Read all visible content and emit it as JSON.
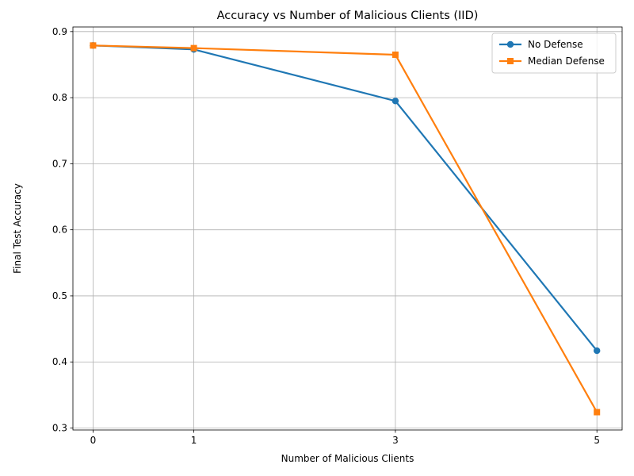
{
  "chart_data": {
    "type": "line",
    "title": "Accuracy vs Number of Malicious Clients (IID)",
    "xlabel": "Number of Malicious Clients",
    "ylabel": "Final Test Accuracy",
    "x": [
      0,
      1,
      3,
      5
    ],
    "x_ticks": [
      "0",
      "1",
      "3",
      "5"
    ],
    "xlim": [
      -0.2,
      5.25
    ],
    "ylim": [
      0.297,
      0.907
    ],
    "y_ticks": [
      "0.3",
      "0.4",
      "0.5",
      "0.6",
      "0.7",
      "0.8",
      "0.9"
    ],
    "y_tick_values": [
      0.3,
      0.4,
      0.5,
      0.6,
      0.7,
      0.8,
      0.9
    ],
    "grid": true,
    "legend_position": "top-right",
    "series": [
      {
        "name": "No Defense",
        "values": [
          0.879,
          0.873,
          0.795,
          0.417
        ],
        "color": "#1f77b4",
        "marker": "circle"
      },
      {
        "name": "Median Defense",
        "values": [
          0.879,
          0.875,
          0.865,
          0.324
        ],
        "color": "#ff7f0e",
        "marker": "square"
      }
    ]
  }
}
